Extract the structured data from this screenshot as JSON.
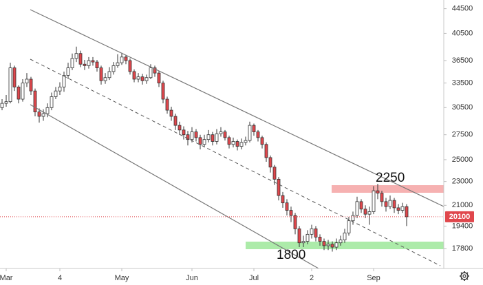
{
  "chart_data": {
    "type": "candlestick",
    "log_scale": true,
    "xlim": [
      -0.5,
      106.5
    ],
    "xticks": [
      {
        "value": 1,
        "label": "Mar"
      },
      {
        "value": 14,
        "label": "4"
      },
      {
        "value": 29,
        "label": "May"
      },
      {
        "value": 46,
        "label": "Jun"
      },
      {
        "value": 61,
        "label": "Jul"
      },
      {
        "value": 75,
        "label": "2"
      },
      {
        "value": 90,
        "label": "Sep"
      }
    ],
    "ylim": [
      16500,
      46000
    ],
    "yticks": [
      17800,
      19400,
      21000,
      23000,
      25000,
      27500,
      30500,
      33500,
      36500,
      40500,
      44500
    ],
    "up_color": "#ffffff",
    "down_color": "#e0474c",
    "last_price": 20100,
    "annotations": [
      "2250",
      "1800"
    ],
    "open": [
      30500,
      31000,
      31200,
      35500,
      33000,
      31500,
      33500,
      34000,
      32500,
      30000,
      29500,
      29800,
      30500,
      31800,
      32500,
      33000,
      34500,
      35500,
      36800,
      37500,
      36000,
      35800,
      36500,
      36300,
      35500,
      33800,
      34200,
      35000,
      35800,
      36200,
      37000,
      36500,
      35000,
      34000,
      34300,
      33800,
      34200,
      35500,
      34800,
      33500,
      31500,
      30200,
      29500,
      28500,
      28000,
      27500,
      27000,
      27800,
      27200,
      26500,
      27000,
      27500,
      26800,
      27600,
      27800,
      27200,
      26500,
      26800,
      26300,
      26700,
      26900,
      28500,
      27800,
      27200,
      26500,
      25200,
      24300,
      23200,
      21800,
      21200,
      20600,
      20200,
      19200,
      18200,
      18300,
      18800,
      19200,
      18600,
      18300,
      18000,
      18100,
      17900,
      18200,
      18400,
      18900,
      19800,
      20200,
      21300,
      20700,
      20300,
      20500,
      22200,
      22000,
      21300,
      20900,
      21400,
      20800,
      20600,
      20900
    ],
    "high": [
      31500,
      32000,
      36200,
      35800,
      33200,
      34000,
      34800,
      34300,
      32800,
      30400,
      30300,
      31000,
      32300,
      33000,
      33600,
      35000,
      36200,
      37500,
      38500,
      37900,
      36600,
      37000,
      37000,
      36600,
      35800,
      34800,
      35600,
      36300,
      37400,
      37600,
      37300,
      36800,
      35300,
      34800,
      34700,
      34600,
      36000,
      35800,
      35100,
      33800,
      31800,
      30600,
      29800,
      28900,
      28400,
      27900,
      28300,
      28100,
      27500,
      27500,
      28000,
      27800,
      28100,
      28300,
      28000,
      27400,
      27200,
      27000,
      27100,
      27300,
      28900,
      28700,
      28000,
      27400,
      26700,
      25400,
      24500,
      23400,
      22100,
      21500,
      20900,
      20400,
      19400,
      18700,
      19100,
      19500,
      19400,
      18800,
      18500,
      18400,
      18300,
      18500,
      18700,
      19200,
      20100,
      20500,
      21700,
      21500,
      21000,
      20900,
      22600,
      22800,
      22200,
      21600,
      21800,
      21600,
      21100,
      21200,
      21100
    ],
    "low": [
      30200,
      30600,
      31000,
      32500,
      31000,
      31200,
      33000,
      32000,
      29500,
      28800,
      29000,
      29400,
      30200,
      31500,
      32000,
      32400,
      34000,
      35200,
      36300,
      35600,
      35200,
      35400,
      35800,
      35000,
      33300,
      33400,
      33900,
      34600,
      35500,
      35900,
      36000,
      34600,
      33600,
      33600,
      33300,
      33400,
      34000,
      34300,
      33000,
      31000,
      29800,
      29000,
      28000,
      27500,
      27000,
      26400,
      26700,
      26800,
      26000,
      26200,
      26700,
      26400,
      26500,
      27300,
      26900,
      26100,
      26200,
      25900,
      26000,
      26400,
      26700,
      27400,
      26800,
      26100,
      24800,
      23800,
      22700,
      21400,
      20800,
      20200,
      19700,
      18800,
      17900,
      17900,
      18100,
      18500,
      18300,
      18000,
      17700,
      17700,
      17600,
      17700,
      18000,
      18200,
      18700,
      19500,
      20000,
      20400,
      20000,
      19500,
      20300,
      21500,
      20900,
      20500,
      20700,
      20400,
      20300,
      20400,
      19400
    ],
    "close": [
      31000,
      31200,
      35500,
      33000,
      31500,
      33500,
      34000,
      32500,
      30000,
      29500,
      29800,
      30500,
      31800,
      32500,
      33000,
      34500,
      35500,
      36800,
      37500,
      36000,
      35800,
      36500,
      36300,
      35500,
      33800,
      34200,
      35000,
      35800,
      36200,
      37000,
      36500,
      35000,
      34000,
      34300,
      33800,
      34200,
      35500,
      34800,
      33500,
      31500,
      30200,
      29500,
      28500,
      28000,
      27500,
      27000,
      27800,
      27200,
      26500,
      27000,
      27500,
      26800,
      27600,
      27800,
      27200,
      26500,
      26800,
      26300,
      26700,
      26900,
      28500,
      27800,
      27200,
      26500,
      25200,
      24300,
      23200,
      21800,
      21200,
      20600,
      20200,
      19200,
      18200,
      18300,
      18800,
      19200,
      18600,
      18300,
      18000,
      18100,
      17900,
      18200,
      18400,
      18900,
      19800,
      20200,
      21300,
      20700,
      20300,
      20500,
      22200,
      22000,
      21300,
      20900,
      21400,
      20800,
      20600,
      20900,
      20100
    ]
  }
}
